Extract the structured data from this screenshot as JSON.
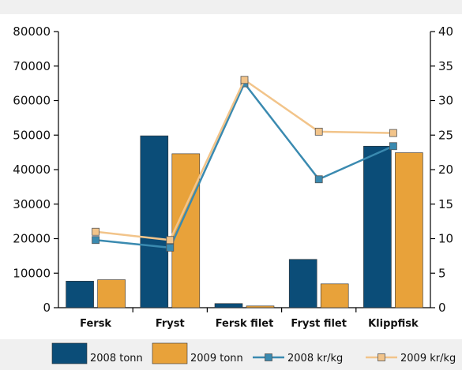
{
  "chart_data": {
    "type": "bar",
    "categories": [
      "Fersk",
      "Fryst",
      "Fersk filet",
      "Fryst filet",
      "Klippfisk"
    ],
    "series": [
      {
        "name": "2008 tonn",
        "type": "bar",
        "axis": "left",
        "color": "#0b4d78",
        "values": [
          7700,
          49800,
          1200,
          14000,
          46800
        ]
      },
      {
        "name": "2009 tonn",
        "type": "bar",
        "axis": "left",
        "color": "#e8a23a",
        "values": [
          8100,
          44600,
          500,
          6900,
          44900
        ]
      },
      {
        "name": "2008 kr/kg",
        "type": "line",
        "axis": "right",
        "color": "#3a8ab0",
        "marker": "square",
        "values": [
          9.8,
          8.7,
          32.5,
          18.6,
          23.4
        ]
      },
      {
        "name": "2009 kr/kg",
        "type": "line",
        "axis": "right",
        "color": "#f2c48a",
        "marker": "square",
        "values": [
          11.0,
          9.8,
          33.0,
          25.5,
          25.3
        ]
      }
    ],
    "y_left": {
      "min": 0,
      "max": 80000,
      "ticks": [
        0,
        10000,
        20000,
        30000,
        40000,
        50000,
        60000,
        70000,
        80000
      ]
    },
    "y_right": {
      "min": 0,
      "max": 40,
      "ticks": [
        0,
        5,
        10,
        15,
        20,
        25,
        30,
        35,
        40
      ]
    },
    "title": "",
    "xlabel": "",
    "ylabel": "",
    "legend": "bottom",
    "grid": false
  }
}
